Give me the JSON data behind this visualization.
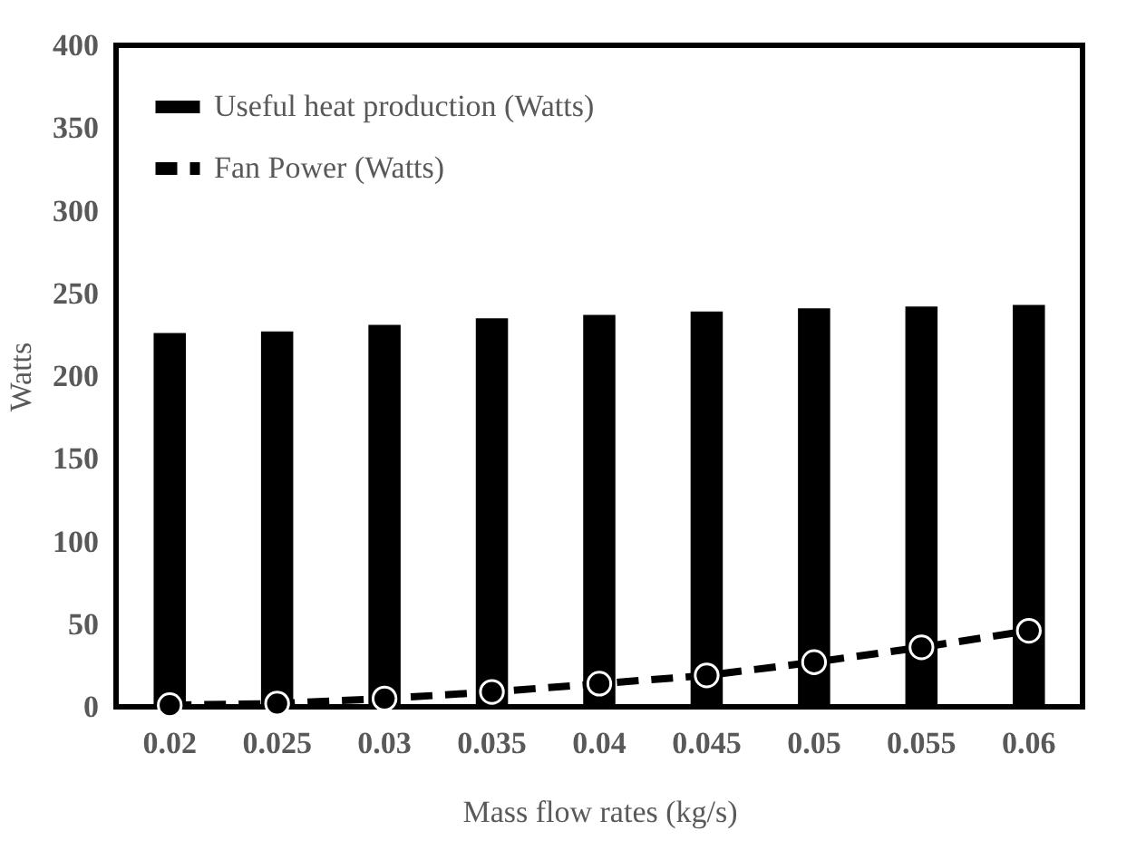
{
  "chart_data": {
    "type": "bar",
    "xlabel": "Mass flow rates (kg/s)",
    "ylabel": "Watts",
    "categories": [
      "0.02",
      "0.025",
      "0.03",
      "0.035",
      "0.04",
      "0.045",
      "0.05",
      "0.055",
      "0.06"
    ],
    "series": [
      {
        "name": "Useful heat production  (Watts)",
        "color": "#000000",
        "values": [
          226,
          227,
          231,
          235,
          237,
          239,
          241,
          242,
          243
        ]
      },
      {
        "name": "Fan Power (Watts)",
        "type": "line",
        "color": "#000000",
        "line_style": "dashed",
        "marker": "circle",
        "values": [
          1,
          2,
          5,
          9,
          14,
          19,
          27,
          36,
          46
        ]
      }
    ],
    "ylim": [
      0,
      400
    ],
    "yticks": [
      0,
      50,
      100,
      150,
      200,
      250,
      300,
      350,
      400
    ],
    "grid": false,
    "legend": "top left"
  }
}
